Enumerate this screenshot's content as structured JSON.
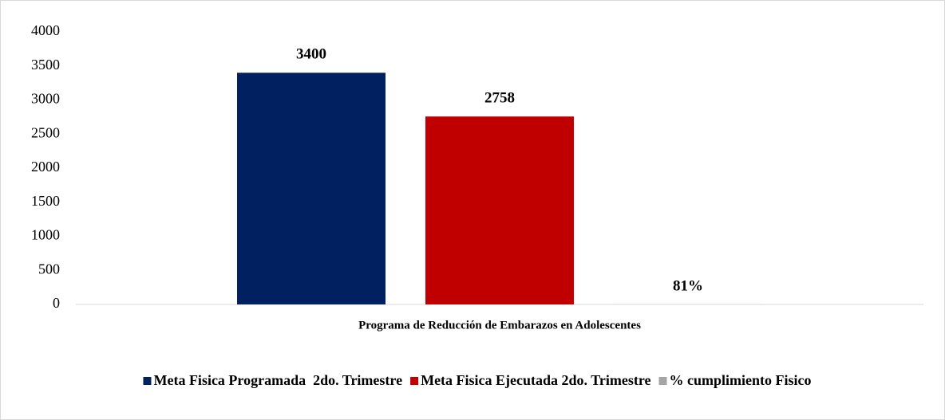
{
  "chart_data": {
    "type": "bar",
    "categories": [
      "Programa de Reducción de Embarazos en Adolescentes"
    ],
    "series": [
      {
        "name": "Meta Fisica Programada  2do. Trimestre",
        "color": "#002060",
        "values": [
          3400
        ]
      },
      {
        "name": "Meta Fisica Ejecutada 2do. Trimestre",
        "color": "#c00000",
        "values": [
          2758
        ]
      },
      {
        "name": "% cumplimiento Fisico",
        "color": "#a5a5a5",
        "values": [
          0.81
        ],
        "value_labels": [
          "81%"
        ]
      }
    ],
    "ylim": [
      0,
      4000
    ],
    "yticks": [
      0,
      500,
      1000,
      1500,
      2000,
      2500,
      3000,
      3500,
      4000
    ],
    "grid": false,
    "legend": "bottom"
  }
}
